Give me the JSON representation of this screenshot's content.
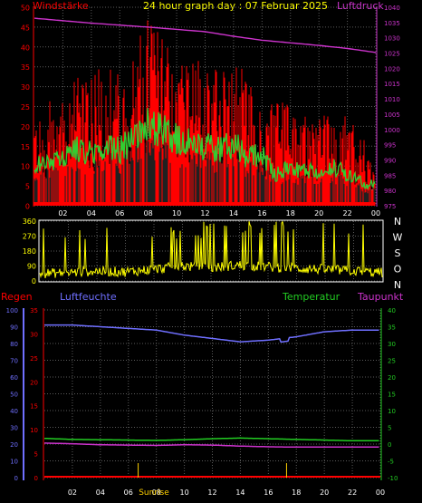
{
  "header": {
    "title": "24 hour graph day : 07 Februar 2025",
    "left_label": "Windstärke",
    "right_label": "Luftdruck"
  },
  "colors": {
    "background": "#000000",
    "grid": "#5a5a5a",
    "gust": "#ff0000",
    "wind_avg": "#32cd32",
    "wind_dark": "#202020",
    "calm": "#c8f0dc",
    "pressure": "#cc33cc",
    "direction": "#ffff00",
    "rain": "#ff0000",
    "humidity": "#6f6fff",
    "temperature": "#22cc22",
    "dewpoint": "#cc33cc",
    "sunrise": "#ffd000",
    "axis_white": "#ffffff"
  },
  "chart_data": [
    {
      "type": "line",
      "name": "wind-pressure",
      "x_ticks": [
        "02",
        "04",
        "06",
        "08",
        "10",
        "12",
        "14",
        "16",
        "18",
        "20",
        "22",
        "00"
      ],
      "x_range_hours": [
        0,
        24
      ],
      "left_axis": {
        "label": "Windstärke",
        "ylim": [
          0,
          50
        ],
        "ticks": [
          "0",
          "5",
          "10",
          "15",
          "20",
          "25",
          "30",
          "35",
          "40",
          "45",
          "50"
        ]
      },
      "right_axis": {
        "label": "Luftdruck",
        "ylim": [
          975,
          1040
        ],
        "ticks": [
          "975",
          "980",
          "985",
          "990",
          "995",
          "1000",
          "1005",
          "1010",
          "1015",
          "1020",
          "1025",
          "1030",
          "1035",
          "1040"
        ]
      },
      "series": [
        {
          "name": "Gust",
          "axis": "left",
          "x": [
            0,
            1,
            2,
            3,
            4,
            5,
            6,
            7,
            8,
            9,
            10,
            11,
            12,
            13,
            14,
            15,
            16,
            17,
            18,
            19,
            20,
            21,
            22,
            23,
            24
          ],
          "y": [
            17,
            20,
            22,
            26,
            24,
            27,
            26,
            29,
            35,
            34,
            30,
            29,
            27,
            26,
            28,
            25,
            21,
            20,
            19,
            18,
            17,
            18,
            17,
            14,
            9
          ]
        },
        {
          "name": "Wind",
          "axis": "left",
          "x": [
            0,
            1,
            2,
            3,
            4,
            5,
            6,
            7,
            8,
            9,
            10,
            11,
            12,
            13,
            14,
            15,
            16,
            17,
            18,
            19,
            20,
            21,
            22,
            23,
            24
          ],
          "y": [
            10,
            11,
            12,
            14,
            13,
            15,
            14,
            17,
            20,
            19,
            17,
            16,
            15,
            14,
            16,
            12,
            13,
            8,
            10,
            9,
            8,
            10,
            8,
            6,
            5
          ]
        },
        {
          "name": "Luftdruck",
          "axis": "right",
          "x": [
            0,
            4,
            8,
            12,
            14,
            16,
            20,
            22,
            24
          ],
          "y": [
            1036.4,
            1034.8,
            1033.5,
            1032.0,
            1030.5,
            1029.2,
            1027.5,
            1026.5,
            1025.2
          ]
        }
      ]
    },
    {
      "type": "scatter",
      "name": "wind-direction",
      "ylim": [
        0,
        360
      ],
      "y_ticks": [
        "0",
        "90",
        "180",
        "270",
        "360"
      ],
      "compass_labels": [
        "N",
        "W",
        "S",
        "O",
        "N"
      ],
      "x_ticks": [
        "02",
        "04",
        "06",
        "08",
        "10",
        "12",
        "14",
        "16",
        "18",
        "20",
        "22",
        "00"
      ],
      "series": [
        {
          "name": "Windrichtung",
          "x": [
            0,
            2,
            4,
            6,
            8,
            10,
            12,
            14,
            16,
            18,
            20,
            22,
            24
          ],
          "y": [
            45,
            50,
            60,
            55,
            70,
            90,
            80,
            95,
            85,
            75,
            70,
            60,
            50
          ]
        }
      ]
    },
    {
      "type": "line",
      "name": "temp-humidity",
      "x_ticks": [
        "02",
        "04",
        "06",
        "08",
        "10",
        "12",
        "14",
        "16",
        "18",
        "20",
        "22",
        "00"
      ],
      "annotations": [
        "Sunrise"
      ],
      "rain_axis": {
        "label": "Regen",
        "ylim": [
          0,
          35
        ],
        "ticks": [
          "0",
          "5",
          "10",
          "15",
          "20",
          "25",
          "30",
          "35"
        ]
      },
      "humidity_axis": {
        "label": "Luftfeuchte",
        "ylim": [
          0,
          100
        ],
        "ticks": [
          "0",
          "10",
          "20",
          "30",
          "40",
          "50",
          "60",
          "70",
          "80",
          "90",
          "100"
        ]
      },
      "temp_axis": {
        "label": "Temperatur",
        "ylim": [
          -10,
          40
        ],
        "ticks": [
          "-10",
          "-5",
          "0",
          "5",
          "10",
          "15",
          "20",
          "25",
          "30",
          "35",
          "40"
        ]
      },
      "dewpoint_label": "Taupunkt",
      "series": [
        {
          "name": "Luftfeuchte",
          "axis": "humidity",
          "x": [
            0,
            2,
            4,
            6,
            8,
            10,
            12,
            14,
            16,
            18,
            20,
            22,
            24
          ],
          "y": [
            91,
            91,
            90,
            89,
            88,
            85,
            83,
            81,
            82,
            84,
            87,
            88,
            88
          ]
        },
        {
          "name": "Temperatur",
          "axis": "temp",
          "x": [
            0,
            2,
            4,
            6,
            8,
            10,
            12,
            14,
            16,
            18,
            20,
            22,
            24
          ],
          "y": [
            1.7,
            1.4,
            1.3,
            1.2,
            1.1,
            1.3,
            1.6,
            1.8,
            1.6,
            1.4,
            1.2,
            1.0,
            1.0
          ]
        },
        {
          "name": "Taupunkt",
          "axis": "temp",
          "x": [
            0,
            2,
            4,
            6,
            8,
            10,
            12,
            14,
            16,
            18,
            20,
            22,
            24
          ],
          "y": [
            0.3,
            0.1,
            -0.2,
            -0.3,
            -0.4,
            -0.2,
            -0.3,
            -0.6,
            -0.8,
            -0.9,
            -0.9,
            -0.9,
            -0.9
          ]
        },
        {
          "name": "Regen",
          "axis": "rain",
          "x": [
            0,
            6.7,
            17.3,
            24
          ],
          "y": [
            0,
            0,
            0,
            0
          ]
        }
      ]
    }
  ]
}
